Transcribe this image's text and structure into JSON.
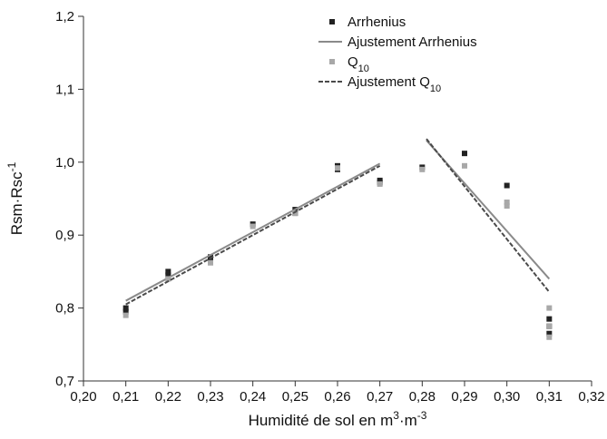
{
  "chart_data": {
    "type": "scatter",
    "xlabel": "Humidité de sol en m",
    "xlabel_sup1": "3",
    "xlabel_mid": "·m",
    "xlabel_sup2": "-3",
    "ylabel": "Rsm·Rsc",
    "ylabel_sup": "-1",
    "xlim": [
      0.2,
      0.32
    ],
    "ylim": [
      0.7,
      1.2
    ],
    "x_ticks": [
      0.2,
      0.21,
      0.22,
      0.23,
      0.24,
      0.25,
      0.26,
      0.27,
      0.28,
      0.29,
      0.3,
      0.31,
      0.32
    ],
    "x_tick_labels": [
      "0,20",
      "0,21",
      "0,22",
      "0,23",
      "0,24",
      "0,25",
      "0,26",
      "0,27",
      "0,28",
      "0,29",
      "0,30",
      "0,31",
      "0,32"
    ],
    "y_ticks": [
      0.7,
      0.8,
      0.9,
      1.0,
      1.1,
      1.2
    ],
    "y_tick_labels": [
      "0,7",
      "0,8",
      "0,9",
      "1,0",
      "1,1",
      "1,2"
    ],
    "grid": false,
    "legend_position": "top-right",
    "colors": {
      "arrhenius": "#222222",
      "arrhenius_fit": "#8a8a8a",
      "q10": "#a8a8a8",
      "q10_fit": "#4a4a4a"
    },
    "series": [
      {
        "name": "Arrhenius",
        "kind": "points",
        "points": [
          [
            0.21,
            0.795
          ],
          [
            0.21,
            0.8
          ],
          [
            0.22,
            0.845
          ],
          [
            0.22,
            0.85
          ],
          [
            0.23,
            0.865
          ],
          [
            0.23,
            0.87
          ],
          [
            0.24,
            0.915
          ],
          [
            0.25,
            0.93
          ],
          [
            0.25,
            0.935
          ],
          [
            0.26,
            0.995
          ],
          [
            0.26,
            0.99
          ],
          [
            0.27,
            0.975
          ],
          [
            0.27,
            0.972
          ],
          [
            0.28,
            0.993
          ],
          [
            0.29,
            1.012
          ],
          [
            0.3,
            0.968
          ],
          [
            0.31,
            0.785
          ],
          [
            0.31,
            0.775
          ],
          [
            0.31,
            0.765
          ]
        ]
      },
      {
        "name": "Ajustement Arrhenius",
        "kind": "lines",
        "segments": [
          [
            [
              0.21,
              0.81
            ],
            [
              0.27,
              0.998
            ]
          ],
          [
            [
              0.281,
              1.03
            ],
            [
              0.31,
              0.84
            ]
          ]
        ]
      },
      {
        "name": "Q",
        "name_sub": "10",
        "kind": "points",
        "points": [
          [
            0.21,
            0.79
          ],
          [
            0.22,
            0.84
          ],
          [
            0.23,
            0.862
          ],
          [
            0.24,
            0.912
          ],
          [
            0.25,
            0.93
          ],
          [
            0.26,
            0.992
          ],
          [
            0.27,
            0.97
          ],
          [
            0.28,
            0.99
          ],
          [
            0.29,
            0.995
          ],
          [
            0.3,
            0.945
          ],
          [
            0.3,
            0.94
          ],
          [
            0.31,
            0.8
          ],
          [
            0.31,
            0.775
          ],
          [
            0.31,
            0.76
          ]
        ]
      },
      {
        "name": "Ajustement Q",
        "name_sub": "10",
        "kind": "lines",
        "segments": [
          [
            [
              0.21,
              0.805
            ],
            [
              0.27,
              0.995
            ]
          ],
          [
            [
              0.281,
              1.032
            ],
            [
              0.31,
              0.822
            ]
          ]
        ]
      }
    ]
  }
}
